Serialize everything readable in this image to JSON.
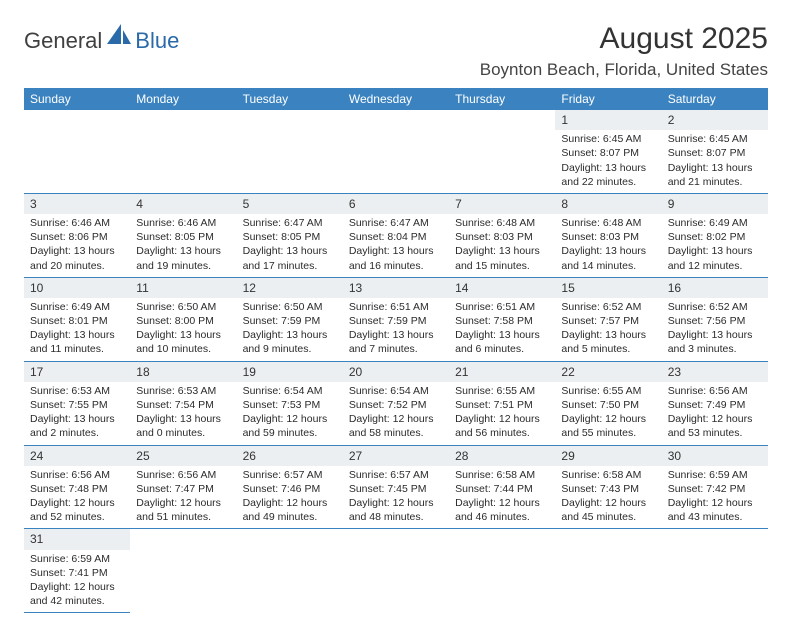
{
  "logo": {
    "part1": "General",
    "part2": "Blue"
  },
  "title": "August 2025",
  "location": "Boynton Beach, Florida, United States",
  "colors": {
    "header_bg": "#3b83c0",
    "header_text": "#ffffff",
    "daynum_bg": "#eceff1",
    "border": "#3b83c0",
    "logo_blue": "#2b6aa8",
    "text": "#2b2b2b"
  },
  "weekdays": [
    "Sunday",
    "Monday",
    "Tuesday",
    "Wednesday",
    "Thursday",
    "Friday",
    "Saturday"
  ],
  "weeks": [
    [
      null,
      null,
      null,
      null,
      null,
      {
        "n": "1",
        "sr": "6:45 AM",
        "ss": "8:07 PM",
        "dl": "13 hours and 22 minutes."
      },
      {
        "n": "2",
        "sr": "6:45 AM",
        "ss": "8:07 PM",
        "dl": "13 hours and 21 minutes."
      }
    ],
    [
      {
        "n": "3",
        "sr": "6:46 AM",
        "ss": "8:06 PM",
        "dl": "13 hours and 20 minutes."
      },
      {
        "n": "4",
        "sr": "6:46 AM",
        "ss": "8:05 PM",
        "dl": "13 hours and 19 minutes."
      },
      {
        "n": "5",
        "sr": "6:47 AM",
        "ss": "8:05 PM",
        "dl": "13 hours and 17 minutes."
      },
      {
        "n": "6",
        "sr": "6:47 AM",
        "ss": "8:04 PM",
        "dl": "13 hours and 16 minutes."
      },
      {
        "n": "7",
        "sr": "6:48 AM",
        "ss": "8:03 PM",
        "dl": "13 hours and 15 minutes."
      },
      {
        "n": "8",
        "sr": "6:48 AM",
        "ss": "8:03 PM",
        "dl": "13 hours and 14 minutes."
      },
      {
        "n": "9",
        "sr": "6:49 AM",
        "ss": "8:02 PM",
        "dl": "13 hours and 12 minutes."
      }
    ],
    [
      {
        "n": "10",
        "sr": "6:49 AM",
        "ss": "8:01 PM",
        "dl": "13 hours and 11 minutes."
      },
      {
        "n": "11",
        "sr": "6:50 AM",
        "ss": "8:00 PM",
        "dl": "13 hours and 10 minutes."
      },
      {
        "n": "12",
        "sr": "6:50 AM",
        "ss": "7:59 PM",
        "dl": "13 hours and 9 minutes."
      },
      {
        "n": "13",
        "sr": "6:51 AM",
        "ss": "7:59 PM",
        "dl": "13 hours and 7 minutes."
      },
      {
        "n": "14",
        "sr": "6:51 AM",
        "ss": "7:58 PM",
        "dl": "13 hours and 6 minutes."
      },
      {
        "n": "15",
        "sr": "6:52 AM",
        "ss": "7:57 PM",
        "dl": "13 hours and 5 minutes."
      },
      {
        "n": "16",
        "sr": "6:52 AM",
        "ss": "7:56 PM",
        "dl": "13 hours and 3 minutes."
      }
    ],
    [
      {
        "n": "17",
        "sr": "6:53 AM",
        "ss": "7:55 PM",
        "dl": "13 hours and 2 minutes."
      },
      {
        "n": "18",
        "sr": "6:53 AM",
        "ss": "7:54 PM",
        "dl": "13 hours and 0 minutes."
      },
      {
        "n": "19",
        "sr": "6:54 AM",
        "ss": "7:53 PM",
        "dl": "12 hours and 59 minutes."
      },
      {
        "n": "20",
        "sr": "6:54 AM",
        "ss": "7:52 PM",
        "dl": "12 hours and 58 minutes."
      },
      {
        "n": "21",
        "sr": "6:55 AM",
        "ss": "7:51 PM",
        "dl": "12 hours and 56 minutes."
      },
      {
        "n": "22",
        "sr": "6:55 AM",
        "ss": "7:50 PM",
        "dl": "12 hours and 55 minutes."
      },
      {
        "n": "23",
        "sr": "6:56 AM",
        "ss": "7:49 PM",
        "dl": "12 hours and 53 minutes."
      }
    ],
    [
      {
        "n": "24",
        "sr": "6:56 AM",
        "ss": "7:48 PM",
        "dl": "12 hours and 52 minutes."
      },
      {
        "n": "25",
        "sr": "6:56 AM",
        "ss": "7:47 PM",
        "dl": "12 hours and 51 minutes."
      },
      {
        "n": "26",
        "sr": "6:57 AM",
        "ss": "7:46 PM",
        "dl": "12 hours and 49 minutes."
      },
      {
        "n": "27",
        "sr": "6:57 AM",
        "ss": "7:45 PM",
        "dl": "12 hours and 48 minutes."
      },
      {
        "n": "28",
        "sr": "6:58 AM",
        "ss": "7:44 PM",
        "dl": "12 hours and 46 minutes."
      },
      {
        "n": "29",
        "sr": "6:58 AM",
        "ss": "7:43 PM",
        "dl": "12 hours and 45 minutes."
      },
      {
        "n": "30",
        "sr": "6:59 AM",
        "ss": "7:42 PM",
        "dl": "12 hours and 43 minutes."
      }
    ],
    [
      {
        "n": "31",
        "sr": "6:59 AM",
        "ss": "7:41 PM",
        "dl": "12 hours and 42 minutes."
      },
      null,
      null,
      null,
      null,
      null,
      null
    ]
  ],
  "labels": {
    "sunrise": "Sunrise: ",
    "sunset": "Sunset: ",
    "daylight": "Daylight: "
  }
}
